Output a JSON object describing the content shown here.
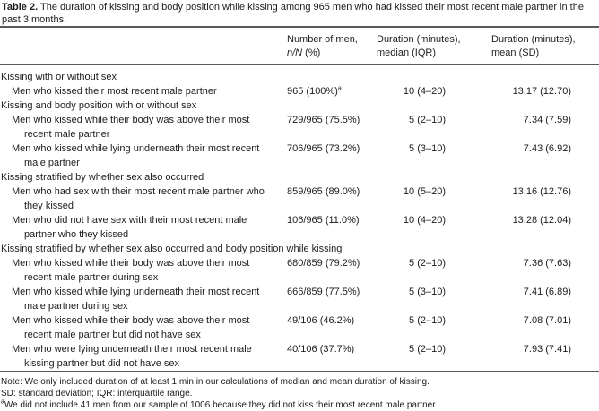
{
  "colors": {
    "text": "#1c1c1c",
    "rule": "#595959",
    "background": "#ffffff"
  },
  "table": {
    "title": {
      "label": "Table 2.",
      "caption": " The duration of kissing and body position while kissing among 965 men who had kissed their most recent male partner in the past 3 months."
    },
    "header": {
      "men": {
        "line1": "Number of men,",
        "line2_italic": "n/N",
        "line2_rest": " (%)"
      },
      "median": {
        "line1": "Duration (minutes),",
        "line2": "median (IQR)"
      },
      "mean": {
        "line1": "Duration (minutes),",
        "line2": "mean (SD)"
      }
    },
    "rows": [
      {
        "type": "section",
        "label": "Kissing with or without sex"
      },
      {
        "type": "item",
        "label_line1": "Men who kissed their most recent male partner",
        "label_line2": "",
        "n": "965 (100%)",
        "n_sup": "a",
        "median": "10 (4–20)",
        "mean": "13.17 (12.70)"
      },
      {
        "type": "section",
        "label": "Kissing and body position with or without sex"
      },
      {
        "type": "item",
        "label_line1": "Men who kissed while their body was above their most",
        "label_line2": "recent male partner",
        "n": "729/965 (75.5%)",
        "median": "5 (2–10)",
        "mean": "7.34 (7.59)"
      },
      {
        "type": "item",
        "label_line1": "Men who kissed while lying underneath their most recent",
        "label_line2": "male partner",
        "n": "706/965 (73.2%)",
        "median": "5 (3–10)",
        "mean": "7.43 (6.92)"
      },
      {
        "type": "section",
        "label": "Kissing stratified by whether sex also occurred"
      },
      {
        "type": "item",
        "label_line1": "Men who had sex with their most recent male partner who",
        "label_line2": "they kissed",
        "n": "859/965 (89.0%)",
        "median": "10 (5–20)",
        "mean": "13.16 (12.76)"
      },
      {
        "type": "item",
        "label_line1": "Men who did not have sex with their most recent male",
        "label_line2": "partner who they kissed",
        "n": "106/965 (11.0%)",
        "median": "10 (4–20)",
        "mean": "13.28 (12.04)"
      },
      {
        "type": "section",
        "label": "Kissing stratified by whether sex also occurred and body position while kissing"
      },
      {
        "type": "item",
        "label_line1": "Men who kissed while their body was above their most",
        "label_line2": "recent male partner during sex",
        "n": "680/859 (79.2%)",
        "median": "5 (2–10)",
        "mean": "7.36 (7.63)"
      },
      {
        "type": "item",
        "label_line1": "Men who kissed while lying underneath their most recent",
        "label_line2": "male partner during sex",
        "n": "666/859 (77.5%)",
        "median": "5 (3–10)",
        "mean": "7.41 (6.89)"
      },
      {
        "type": "item",
        "label_line1": "Men who kissed while their body was above their most",
        "label_line2": "recent male partner but did not have sex",
        "n": "49/106 (46.2%)",
        "median": "5 (2–10)",
        "mean": "7.08 (7.01)"
      },
      {
        "type": "item",
        "label_line1": "Men who were lying underneath their most recent male",
        "label_line2": "kissing partner but did not have sex",
        "n": "40/106 (37.7%)",
        "median": "5 (2–10)",
        "mean": "7.93 (7.41)"
      }
    ],
    "notes": {
      "note1": "Note: We only included duration of at least 1 min in our calculations of median and mean duration of kissing.",
      "note2": "SD: standard deviation; IQR: interquartile range.",
      "note3_sup": "a",
      "note3": "We did not include 41 men from our sample of 1006 because they did not kiss their most recent male partner."
    }
  }
}
